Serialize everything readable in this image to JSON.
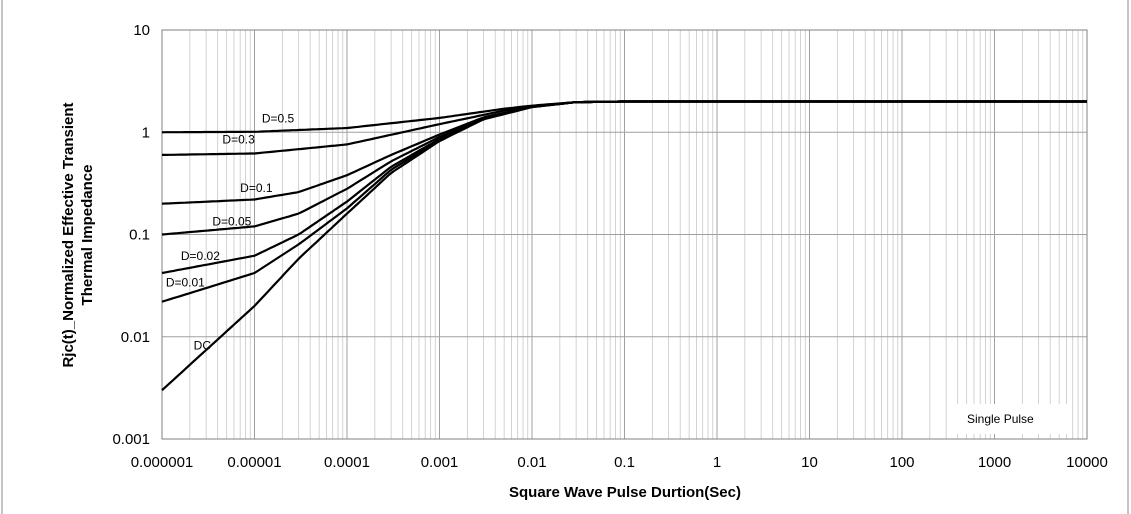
{
  "chart_data": {
    "type": "line",
    "title": "",
    "xlabel": "Square Wave Pulse Durtion(Sec)",
    "ylabel_lines": [
      "Rjc(t)_Normalized Effective Transient",
      "Thermal Impedance"
    ],
    "x_scale": "log",
    "y_scale": "log",
    "xlim": [
      1e-06,
      10000
    ],
    "ylim": [
      0.001,
      10
    ],
    "x_tick_labels": [
      "0.000001",
      "0.00001",
      "0.0001",
      "0.001",
      "0.01",
      "0.1",
      "1",
      "10",
      "100",
      "1000",
      "10000"
    ],
    "y_tick_labels": [
      "10",
      "1",
      "0.1",
      "0.01",
      "0.001"
    ],
    "grid": true,
    "annotation": "Single Pulse",
    "series": [
      {
        "name": "D=0.5",
        "x": [
          1e-06,
          1e-05,
          0.0001,
          0.001,
          0.005,
          0.01,
          0.03,
          0.1,
          10000
        ],
        "y": [
          1.0,
          1.01,
          1.1,
          1.38,
          1.7,
          1.82,
          1.97,
          2.0,
          2.0
        ]
      },
      {
        "name": "D=0.3",
        "x": [
          1e-06,
          1e-05,
          0.0001,
          0.001,
          0.005,
          0.01,
          0.03,
          0.1,
          10000
        ],
        "y": [
          0.6,
          0.62,
          0.76,
          1.2,
          1.63,
          1.8,
          1.97,
          2.0,
          2.0
        ]
      },
      {
        "name": "D=0.1",
        "x": [
          1e-06,
          1e-05,
          3e-05,
          0.0001,
          0.0003,
          0.001,
          0.003,
          0.01,
          0.03,
          0.1,
          10000
        ],
        "y": [
          0.2,
          0.22,
          0.26,
          0.38,
          0.6,
          0.95,
          1.4,
          1.78,
          1.97,
          2.0,
          2.0
        ]
      },
      {
        "name": "D=0.05",
        "x": [
          1e-06,
          1e-05,
          3e-05,
          0.0001,
          0.0003,
          0.001,
          0.003,
          0.01,
          0.03,
          0.1,
          10000
        ],
        "y": [
          0.1,
          0.12,
          0.16,
          0.28,
          0.52,
          0.9,
          1.38,
          1.78,
          1.97,
          2.0,
          2.0
        ]
      },
      {
        "name": "D=0.02",
        "x": [
          1e-06,
          1e-05,
          3e-05,
          0.0001,
          0.0003,
          0.001,
          0.003,
          0.01,
          0.03,
          0.1,
          10000
        ],
        "y": [
          0.042,
          0.062,
          0.1,
          0.21,
          0.46,
          0.86,
          1.36,
          1.77,
          1.97,
          2.0,
          2.0
        ]
      },
      {
        "name": "D=0.01",
        "x": [
          1e-06,
          1e-05,
          3e-05,
          0.0001,
          0.0003,
          0.001,
          0.003,
          0.01,
          0.03,
          0.1,
          10000
        ],
        "y": [
          0.022,
          0.042,
          0.08,
          0.18,
          0.43,
          0.84,
          1.35,
          1.77,
          1.97,
          2.0,
          2.0
        ]
      },
      {
        "name": "DC",
        "x": [
          1e-06,
          1e-05,
          3e-05,
          0.0001,
          0.0003,
          0.001,
          0.003,
          0.01,
          0.03,
          0.1,
          10000
        ],
        "y": [
          0.003,
          0.02,
          0.058,
          0.16,
          0.4,
          0.82,
          1.34,
          1.76,
          1.97,
          2.0,
          2.0
        ]
      }
    ],
    "curve_label_positions": [
      {
        "text": "D=0.5",
        "x": 1.2e-05,
        "y": 1.25
      },
      {
        "text": "D=0.3",
        "x": 4.5e-06,
        "y": 0.78
      },
      {
        "text": "D=0.1",
        "x": 7e-06,
        "y": 0.26
      },
      {
        "text": "D=0.05",
        "x": 3.5e-06,
        "y": 0.123
      },
      {
        "text": "D=0.02",
        "x": 1.6e-06,
        "y": 0.056
      },
      {
        "text": "D=0.01",
        "x": 1.1e-06,
        "y": 0.031
      },
      {
        "text": "DC",
        "x": 2.2e-06,
        "y": 0.0075
      }
    ],
    "colors": {
      "line": "#000000",
      "grid": "#c8c8c8",
      "frame": "#808080"
    }
  }
}
